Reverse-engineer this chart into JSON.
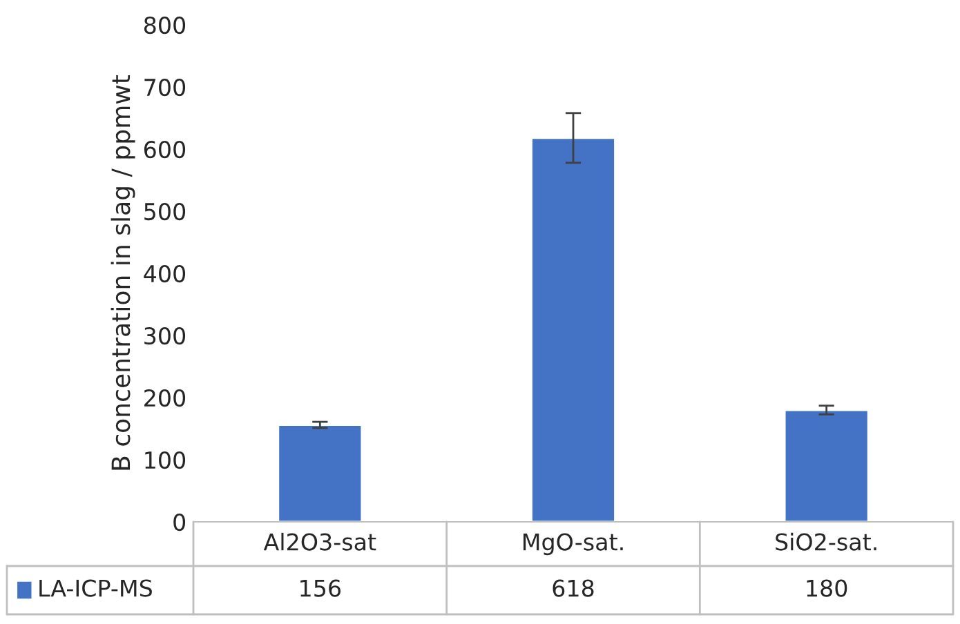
{
  "chart_data": {
    "type": "bar",
    "ylabel": "B concentration in slag / ppmwt",
    "categories": [
      "Al2O3-sat",
      "MgO-sat.",
      "SiO2-sat."
    ],
    "series": [
      {
        "name": "LA-ICP-MS",
        "color": "#4472c4",
        "values": [
          156,
          618,
          180
        ],
        "errors": [
          5,
          40,
          7
        ]
      }
    ],
    "ylim": [
      0,
      800
    ],
    "yticks": [
      0,
      100,
      200,
      300,
      400,
      500,
      600,
      700,
      800
    ],
    "data_labels": true,
    "legend": "bottom",
    "grid": false
  }
}
